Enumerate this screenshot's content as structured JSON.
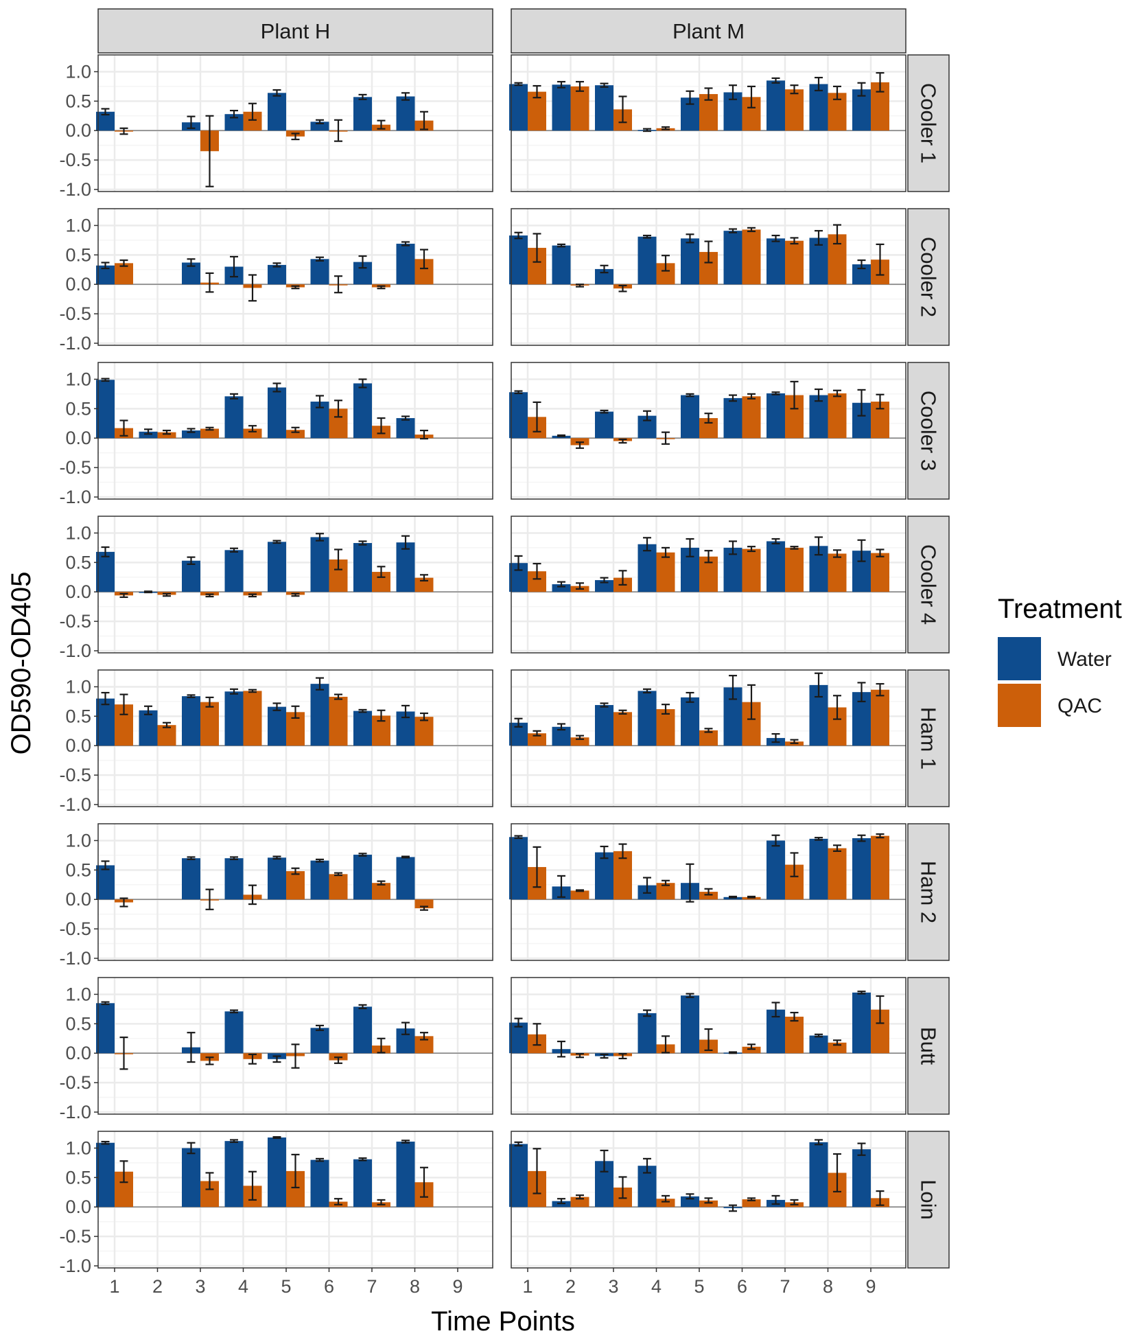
{
  "chart_data": {
    "type": "bar",
    "layout": "facet-grid",
    "xlabel": "Time Points",
    "ylabel": "OD590-OD405",
    "ylim": [
      -1.0,
      1.25
    ],
    "yticks": [
      1.0,
      0.5,
      0.0,
      -0.5,
      -1.0
    ],
    "ytick_labels": [
      "1.0",
      "0.5",
      "0.0",
      "-0.5",
      "-1.0"
    ],
    "x": [
      1,
      2,
      3,
      4,
      5,
      6,
      7,
      8,
      9
    ],
    "xtick_labels": [
      "1",
      "2",
      "3",
      "4",
      "5",
      "6",
      "7",
      "8",
      "9"
    ],
    "columns": [
      "Plant H",
      "Plant M"
    ],
    "rows": [
      "Cooler 1",
      "Cooler 2",
      "Cooler 3",
      "Cooler 4",
      "Ham 1",
      "Ham 2",
      "Butt",
      "Loin"
    ],
    "legend": {
      "title": "Treatment",
      "position": "right",
      "items": [
        {
          "name": "Water",
          "color": "#0E4C8E"
        },
        {
          "name": "QAC",
          "color": "#CC5F0A"
        }
      ]
    },
    "colors": {
      "Water": "#0E4C8E",
      "QAC": "#CC5F0A",
      "strip": "#D9D9D9",
      "grid_major": "#EBEBEB",
      "grid_minor": "#F5F5F5",
      "zero_line": "#888888"
    },
    "panels": [
      {
        "plant": "Plant H",
        "location": "Cooler 1",
        "water": [
          0.32,
          null,
          0.14,
          0.28,
          0.64,
          0.15,
          0.57,
          0.58,
          null
        ],
        "water_err": [
          0.05,
          null,
          0.1,
          0.06,
          0.05,
          0.03,
          0.04,
          0.06,
          null
        ],
        "qac": [
          -0.01,
          null,
          -0.35,
          0.32,
          -0.1,
          0.0,
          0.1,
          0.17,
          null
        ],
        "qac_err": [
          0.05,
          null,
          0.6,
          0.14,
          0.05,
          0.18,
          0.07,
          0.15,
          null
        ]
      },
      {
        "plant": "Plant M",
        "location": "Cooler 1",
        "water": [
          0.79,
          0.78,
          0.77,
          0.01,
          0.56,
          0.65,
          0.85,
          0.79,
          0.7
        ],
        "water_err": [
          0.02,
          0.05,
          0.03,
          0.02,
          0.11,
          0.12,
          0.04,
          0.11,
          0.11
        ],
        "qac": [
          0.66,
          0.75,
          0.36,
          0.04,
          0.62,
          0.57,
          0.7,
          0.64,
          0.82
        ],
        "qac_err": [
          0.1,
          0.08,
          0.22,
          0.02,
          0.1,
          0.18,
          0.07,
          0.11,
          0.16
        ]
      },
      {
        "plant": "Plant H",
        "location": "Cooler 2",
        "water": [
          0.32,
          null,
          0.37,
          0.3,
          0.33,
          0.43,
          0.38,
          0.69,
          null
        ],
        "water_err": [
          0.05,
          null,
          0.06,
          0.17,
          0.03,
          0.03,
          0.1,
          0.03,
          null
        ],
        "qac": [
          0.36,
          null,
          0.03,
          -0.06,
          -0.05,
          0.0,
          -0.05,
          0.43,
          null
        ],
        "qac_err": [
          0.05,
          null,
          0.16,
          0.22,
          0.02,
          0.14,
          0.02,
          0.16,
          null
        ]
      },
      {
        "plant": "Plant M",
        "location": "Cooler 2",
        "water": [
          0.83,
          0.66,
          0.26,
          0.81,
          0.78,
          0.91,
          0.78,
          0.79,
          0.34
        ],
        "water_err": [
          0.05,
          0.02,
          0.06,
          0.02,
          0.07,
          0.03,
          0.05,
          0.12,
          0.07
        ],
        "qac": [
          0.62,
          -0.02,
          -0.07,
          0.36,
          0.55,
          0.93,
          0.74,
          0.85,
          0.42
        ],
        "qac_err": [
          0.24,
          0.02,
          0.05,
          0.13,
          0.18,
          0.03,
          0.05,
          0.16,
          0.26
        ]
      },
      {
        "plant": "Plant H",
        "location": "Cooler 3",
        "water": [
          0.99,
          0.11,
          0.13,
          0.71,
          0.86,
          0.62,
          0.93,
          0.34,
          null
        ],
        "water_err": [
          0.02,
          0.04,
          0.03,
          0.04,
          0.07,
          0.1,
          0.07,
          0.03,
          null
        ],
        "qac": [
          0.17,
          0.1,
          0.16,
          0.16,
          0.14,
          0.5,
          0.21,
          0.06,
          null
        ],
        "qac_err": [
          0.13,
          0.03,
          0.02,
          0.05,
          0.04,
          0.14,
          0.13,
          0.07,
          null
        ]
      },
      {
        "plant": "Plant M",
        "location": "Cooler 3",
        "water": [
          0.78,
          0.04,
          0.45,
          0.38,
          0.73,
          0.68,
          0.76,
          0.73,
          0.6
        ],
        "water_err": [
          0.02,
          0.01,
          0.02,
          0.08,
          0.02,
          0.05,
          0.02,
          0.1,
          0.22
        ],
        "qac": [
          0.36,
          -0.12,
          -0.05,
          0.0,
          0.34,
          0.71,
          0.73,
          0.76,
          0.62
        ],
        "qac_err": [
          0.25,
          0.05,
          0.03,
          0.1,
          0.08,
          0.04,
          0.23,
          0.05,
          0.12
        ]
      },
      {
        "plant": "Plant H",
        "location": "Cooler 4",
        "water": [
          0.68,
          0.0,
          0.53,
          0.71,
          0.85,
          0.93,
          0.83,
          0.84,
          null
        ],
        "water_err": [
          0.08,
          0.01,
          0.06,
          0.03,
          0.02,
          0.06,
          0.03,
          0.11,
          null
        ],
        "qac": [
          -0.06,
          -0.05,
          -0.06,
          -0.06,
          -0.05,
          0.55,
          0.34,
          0.24,
          null
        ],
        "qac_err": [
          0.03,
          0.02,
          0.02,
          0.02,
          0.02,
          0.17,
          0.09,
          0.05,
          null
        ]
      },
      {
        "plant": "Plant M",
        "location": "Cooler 4",
        "water": [
          0.49,
          0.13,
          0.2,
          0.81,
          0.75,
          0.75,
          0.86,
          0.78,
          0.7
        ],
        "water_err": [
          0.12,
          0.04,
          0.04,
          0.11,
          0.15,
          0.11,
          0.04,
          0.15,
          0.18
        ],
        "qac": [
          0.35,
          0.1,
          0.24,
          0.67,
          0.6,
          0.73,
          0.75,
          0.65,
          0.66
        ],
        "qac_err": [
          0.13,
          0.05,
          0.12,
          0.08,
          0.1,
          0.04,
          0.02,
          0.06,
          0.06
        ]
      },
      {
        "plant": "Plant H",
        "location": "Ham 1",
        "water": [
          0.8,
          0.6,
          0.84,
          0.92,
          0.66,
          1.05,
          0.59,
          0.58,
          null
        ],
        "water_err": [
          0.1,
          0.07,
          0.02,
          0.04,
          0.06,
          0.1,
          0.02,
          0.1,
          null
        ],
        "qac": [
          0.7,
          0.35,
          0.74,
          0.93,
          0.57,
          0.83,
          0.51,
          0.49,
          null
        ],
        "qac_err": [
          0.17,
          0.04,
          0.08,
          0.02,
          0.1,
          0.04,
          0.09,
          0.06,
          null
        ]
      },
      {
        "plant": "Plant M",
        "location": "Ham 1",
        "water": [
          0.39,
          0.32,
          0.69,
          0.93,
          0.82,
          0.99,
          0.13,
          1.03,
          0.91
        ],
        "water_err": [
          0.07,
          0.05,
          0.03,
          0.03,
          0.08,
          0.2,
          0.07,
          0.2,
          0.16
        ],
        "qac": [
          0.21,
          0.14,
          0.57,
          0.62,
          0.26,
          0.74,
          0.07,
          0.65,
          0.95
        ],
        "qac_err": [
          0.04,
          0.03,
          0.03,
          0.08,
          0.03,
          0.29,
          0.03,
          0.2,
          0.1
        ]
      },
      {
        "plant": "Plant H",
        "location": "Ham 2",
        "water": [
          0.58,
          null,
          0.7,
          0.7,
          0.71,
          0.66,
          0.76,
          0.72,
          null
        ],
        "water_err": [
          0.07,
          null,
          0.02,
          0.02,
          0.02,
          0.02,
          0.02,
          0.01,
          null
        ],
        "qac": [
          -0.05,
          null,
          0.0,
          0.08,
          0.48,
          0.43,
          0.28,
          -0.15,
          null
        ],
        "qac_err": [
          0.07,
          null,
          0.17,
          0.16,
          0.05,
          0.02,
          0.03,
          0.03,
          null
        ]
      },
      {
        "plant": "Plant M",
        "location": "Ham 2",
        "water": [
          1.06,
          0.22,
          0.8,
          0.24,
          0.28,
          0.04,
          1.0,
          1.03,
          1.04
        ],
        "water_err": [
          0.02,
          0.18,
          0.1,
          0.13,
          0.32,
          0.01,
          0.09,
          0.02,
          0.05
        ],
        "qac": [
          0.55,
          0.15,
          0.82,
          0.28,
          0.13,
          0.04,
          0.59,
          0.87,
          1.08
        ],
        "qac_err": [
          0.34,
          0.01,
          0.12,
          0.04,
          0.05,
          0.01,
          0.2,
          0.05,
          0.03
        ]
      },
      {
        "plant": "Plant H",
        "location": "Butt",
        "water": [
          0.85,
          null,
          0.1,
          0.71,
          -0.1,
          0.43,
          0.79,
          0.42,
          null
        ],
        "water_err": [
          0.02,
          null,
          0.25,
          0.02,
          0.05,
          0.04,
          0.03,
          0.1,
          null
        ],
        "qac": [
          0.0,
          null,
          -0.13,
          -0.1,
          -0.05,
          -0.12,
          0.13,
          0.29,
          null
        ],
        "qac_err": [
          0.27,
          null,
          0.06,
          0.08,
          0.2,
          0.05,
          0.12,
          0.06,
          null
        ]
      },
      {
        "plant": "Plant M",
        "location": "Butt",
        "water": [
          0.52,
          0.07,
          -0.05,
          0.68,
          0.98,
          0.01,
          0.74,
          0.3,
          1.03
        ],
        "water_err": [
          0.07,
          0.13,
          0.03,
          0.05,
          0.03,
          0.01,
          0.12,
          0.02,
          0.02
        ],
        "qac": [
          0.32,
          -0.04,
          -0.05,
          0.15,
          0.23,
          0.11,
          0.62,
          0.18,
          0.74
        ],
        "qac_err": [
          0.18,
          0.03,
          0.04,
          0.14,
          0.18,
          0.04,
          0.07,
          0.04,
          0.23
        ]
      },
      {
        "plant": "Plant H",
        "location": "Loin",
        "water": [
          1.09,
          null,
          1.0,
          1.12,
          1.18,
          0.8,
          0.81,
          1.11,
          null
        ],
        "water_err": [
          0.02,
          null,
          0.09,
          0.02,
          0.01,
          0.02,
          0.02,
          0.02,
          null
        ],
        "qac": [
          0.6,
          null,
          0.44,
          0.36,
          0.61,
          0.09,
          0.08,
          0.42,
          null
        ],
        "qac_err": [
          0.18,
          null,
          0.14,
          0.24,
          0.28,
          0.05,
          0.04,
          0.25,
          null
        ]
      },
      {
        "plant": "Plant M",
        "location": "Loin",
        "water": [
          1.07,
          0.1,
          0.78,
          0.7,
          0.18,
          -0.02,
          0.12,
          1.1,
          0.98
        ],
        "water_err": [
          0.03,
          0.04,
          0.18,
          0.12,
          0.04,
          0.05,
          0.07,
          0.04,
          0.1
        ],
        "qac": [
          0.61,
          0.17,
          0.33,
          0.14,
          0.11,
          0.13,
          0.08,
          0.58,
          0.15
        ],
        "qac_err": [
          0.38,
          0.03,
          0.18,
          0.05,
          0.04,
          0.02,
          0.04,
          0.32,
          0.12
        ]
      }
    ]
  }
}
